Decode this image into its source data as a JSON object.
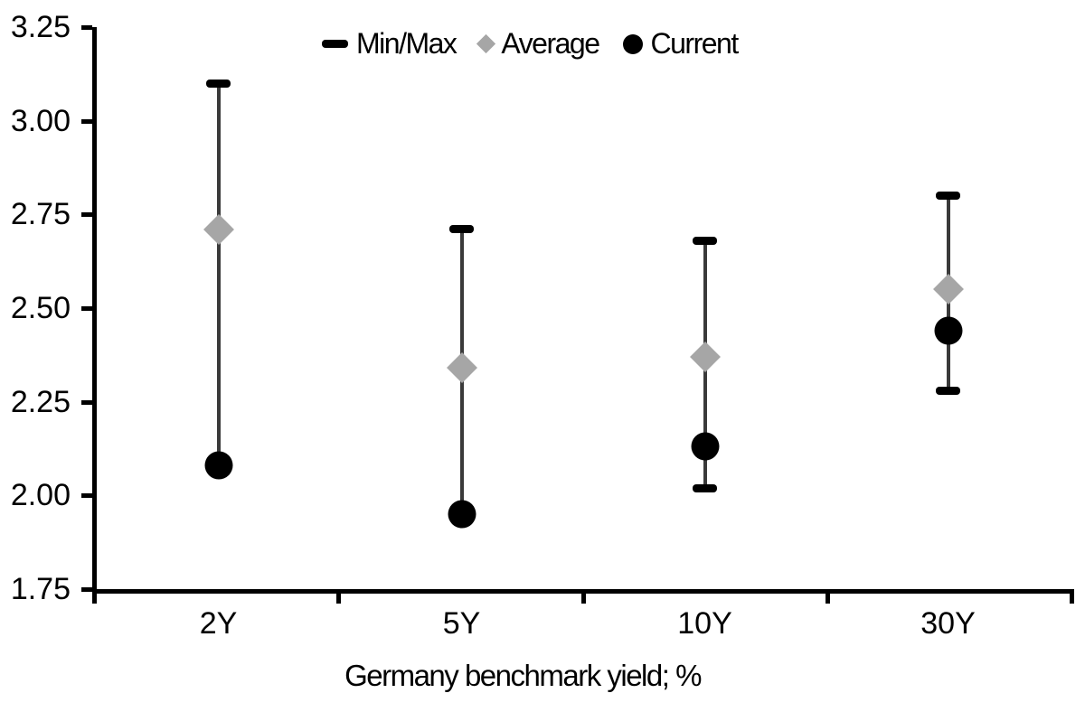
{
  "chart_data": {
    "type": "scatter",
    "subtype": "min-max-range-with-markers",
    "title": "",
    "xlabel": "Germany benchmark yield; %",
    "ylabel": "",
    "categories": [
      "2Y",
      "5Y",
      "10Y",
      "30Y"
    ],
    "series": [
      {
        "name": "Min/Max",
        "marker": "dash",
        "color": "#000000",
        "min": [
          2.08,
          1.95,
          2.02,
          2.28
        ],
        "max": [
          3.1,
          2.71,
          2.68,
          2.8
        ]
      },
      {
        "name": "Average",
        "marker": "diamond",
        "color": "#a6a6a6",
        "values": [
          2.71,
          2.34,
          2.37,
          2.55
        ]
      },
      {
        "name": "Current",
        "marker": "circle",
        "color": "#000000",
        "values": [
          2.08,
          1.95,
          2.13,
          2.44
        ]
      }
    ],
    "ylim": [
      1.75,
      3.25
    ],
    "ytick_step": 0.25,
    "yticks": [
      "3.25",
      "3.00",
      "2.75",
      "2.50",
      "2.25",
      "2.00",
      "1.75"
    ],
    "legend_position": "top",
    "grid": "off",
    "colors": {
      "whisker": "#3a3a3a",
      "cap": "#000000",
      "average": "#a6a6a6",
      "current": "#000000",
      "axis": "#000000",
      "text": "#000000",
      "background": "#ffffff"
    },
    "legend": [
      {
        "label": "Min/Max",
        "marker": "dash"
      },
      {
        "label": "Average",
        "marker": "diamond"
      },
      {
        "label": "Current",
        "marker": "circle"
      }
    ]
  }
}
